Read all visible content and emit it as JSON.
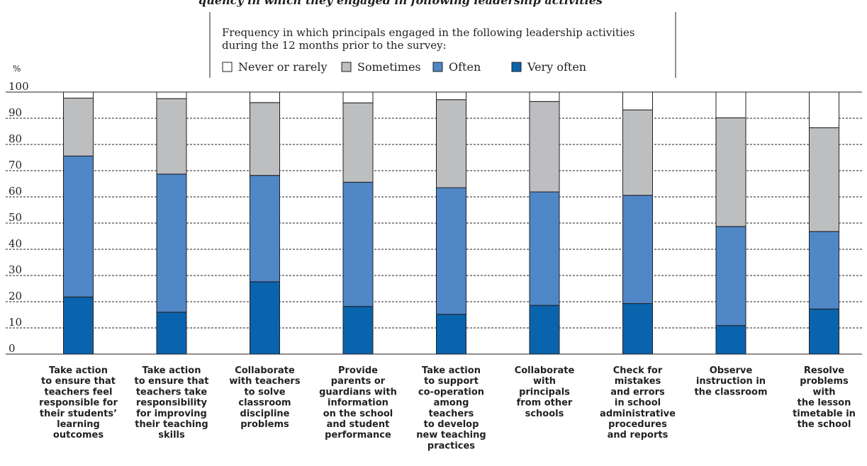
{
  "title_fragment": "quency in which they engaged in following leadership activities",
  "legend": {
    "title_lines": [
      "Frequency in which principals engaged in the following leadership activities",
      "during the 12 months prior to the survey:"
    ],
    "items": [
      {
        "name": "Never or rarely",
        "color": "#ffffff"
      },
      {
        "name": "Sometimes",
        "color": "#bcbec0"
      },
      {
        "name": "Often",
        "color": "#4f87c7"
      },
      {
        "name": "Very often",
        "color": "#0a63ad"
      }
    ]
  },
  "chart_data": {
    "type": "bar",
    "stacked": true,
    "ylabel": "%",
    "ylim": [
      0,
      100
    ],
    "yticks": [
      0,
      10,
      20,
      30,
      40,
      50,
      60,
      70,
      80,
      90,
      100
    ],
    "grid": true,
    "categories": [
      [
        "Take action",
        "to ensure that",
        "teachers feel",
        "responsible for",
        "their students’",
        "learning",
        "outcomes"
      ],
      [
        "Take action",
        "to ensure that",
        "teachers take",
        "responsibility",
        "for improving",
        "their teaching",
        "skills"
      ],
      [
        "Collaborate",
        "with teachers",
        "to solve",
        "classroom",
        "discipline",
        "problems"
      ],
      [
        "Provide",
        "parents or",
        "guardians with",
        "information",
        "on the school",
        "and student",
        "performance"
      ],
      [
        "Take action",
        "to support",
        "co-operation",
        "among",
        "teachers",
        "to develop",
        "new teaching",
        "practices"
      ],
      [
        "Collaborate",
        "with",
        "principals",
        "from other",
        "schools"
      ],
      [
        "Check for",
        "mistakes",
        "and errors",
        "in school",
        "administrative",
        "procedures",
        "and reports"
      ],
      [
        "Observe",
        "instruction in",
        "the classroom"
      ],
      [
        "Resolve",
        "problems",
        "with",
        "the lesson",
        "timetable in",
        "the school"
      ]
    ],
    "series": [
      {
        "name": "Very often",
        "values": [
          21.8,
          16.0,
          27.6,
          18.2,
          15.2,
          18.6,
          19.3,
          10.9,
          17.2
        ]
      },
      {
        "name": "Often",
        "values": [
          53.8,
          52.7,
          40.6,
          47.4,
          48.3,
          43.3,
          41.3,
          37.8,
          29.6
        ]
      },
      {
        "name": "Sometimes",
        "values": [
          22.1,
          28.8,
          27.8,
          30.3,
          33.6,
          34.5,
          32.6,
          41.5,
          39.6
        ]
      },
      {
        "name": "Never or rarely",
        "values": [
          2.3,
          2.5,
          4.0,
          4.1,
          2.9,
          3.6,
          6.8,
          9.8,
          13.6
        ]
      }
    ]
  }
}
